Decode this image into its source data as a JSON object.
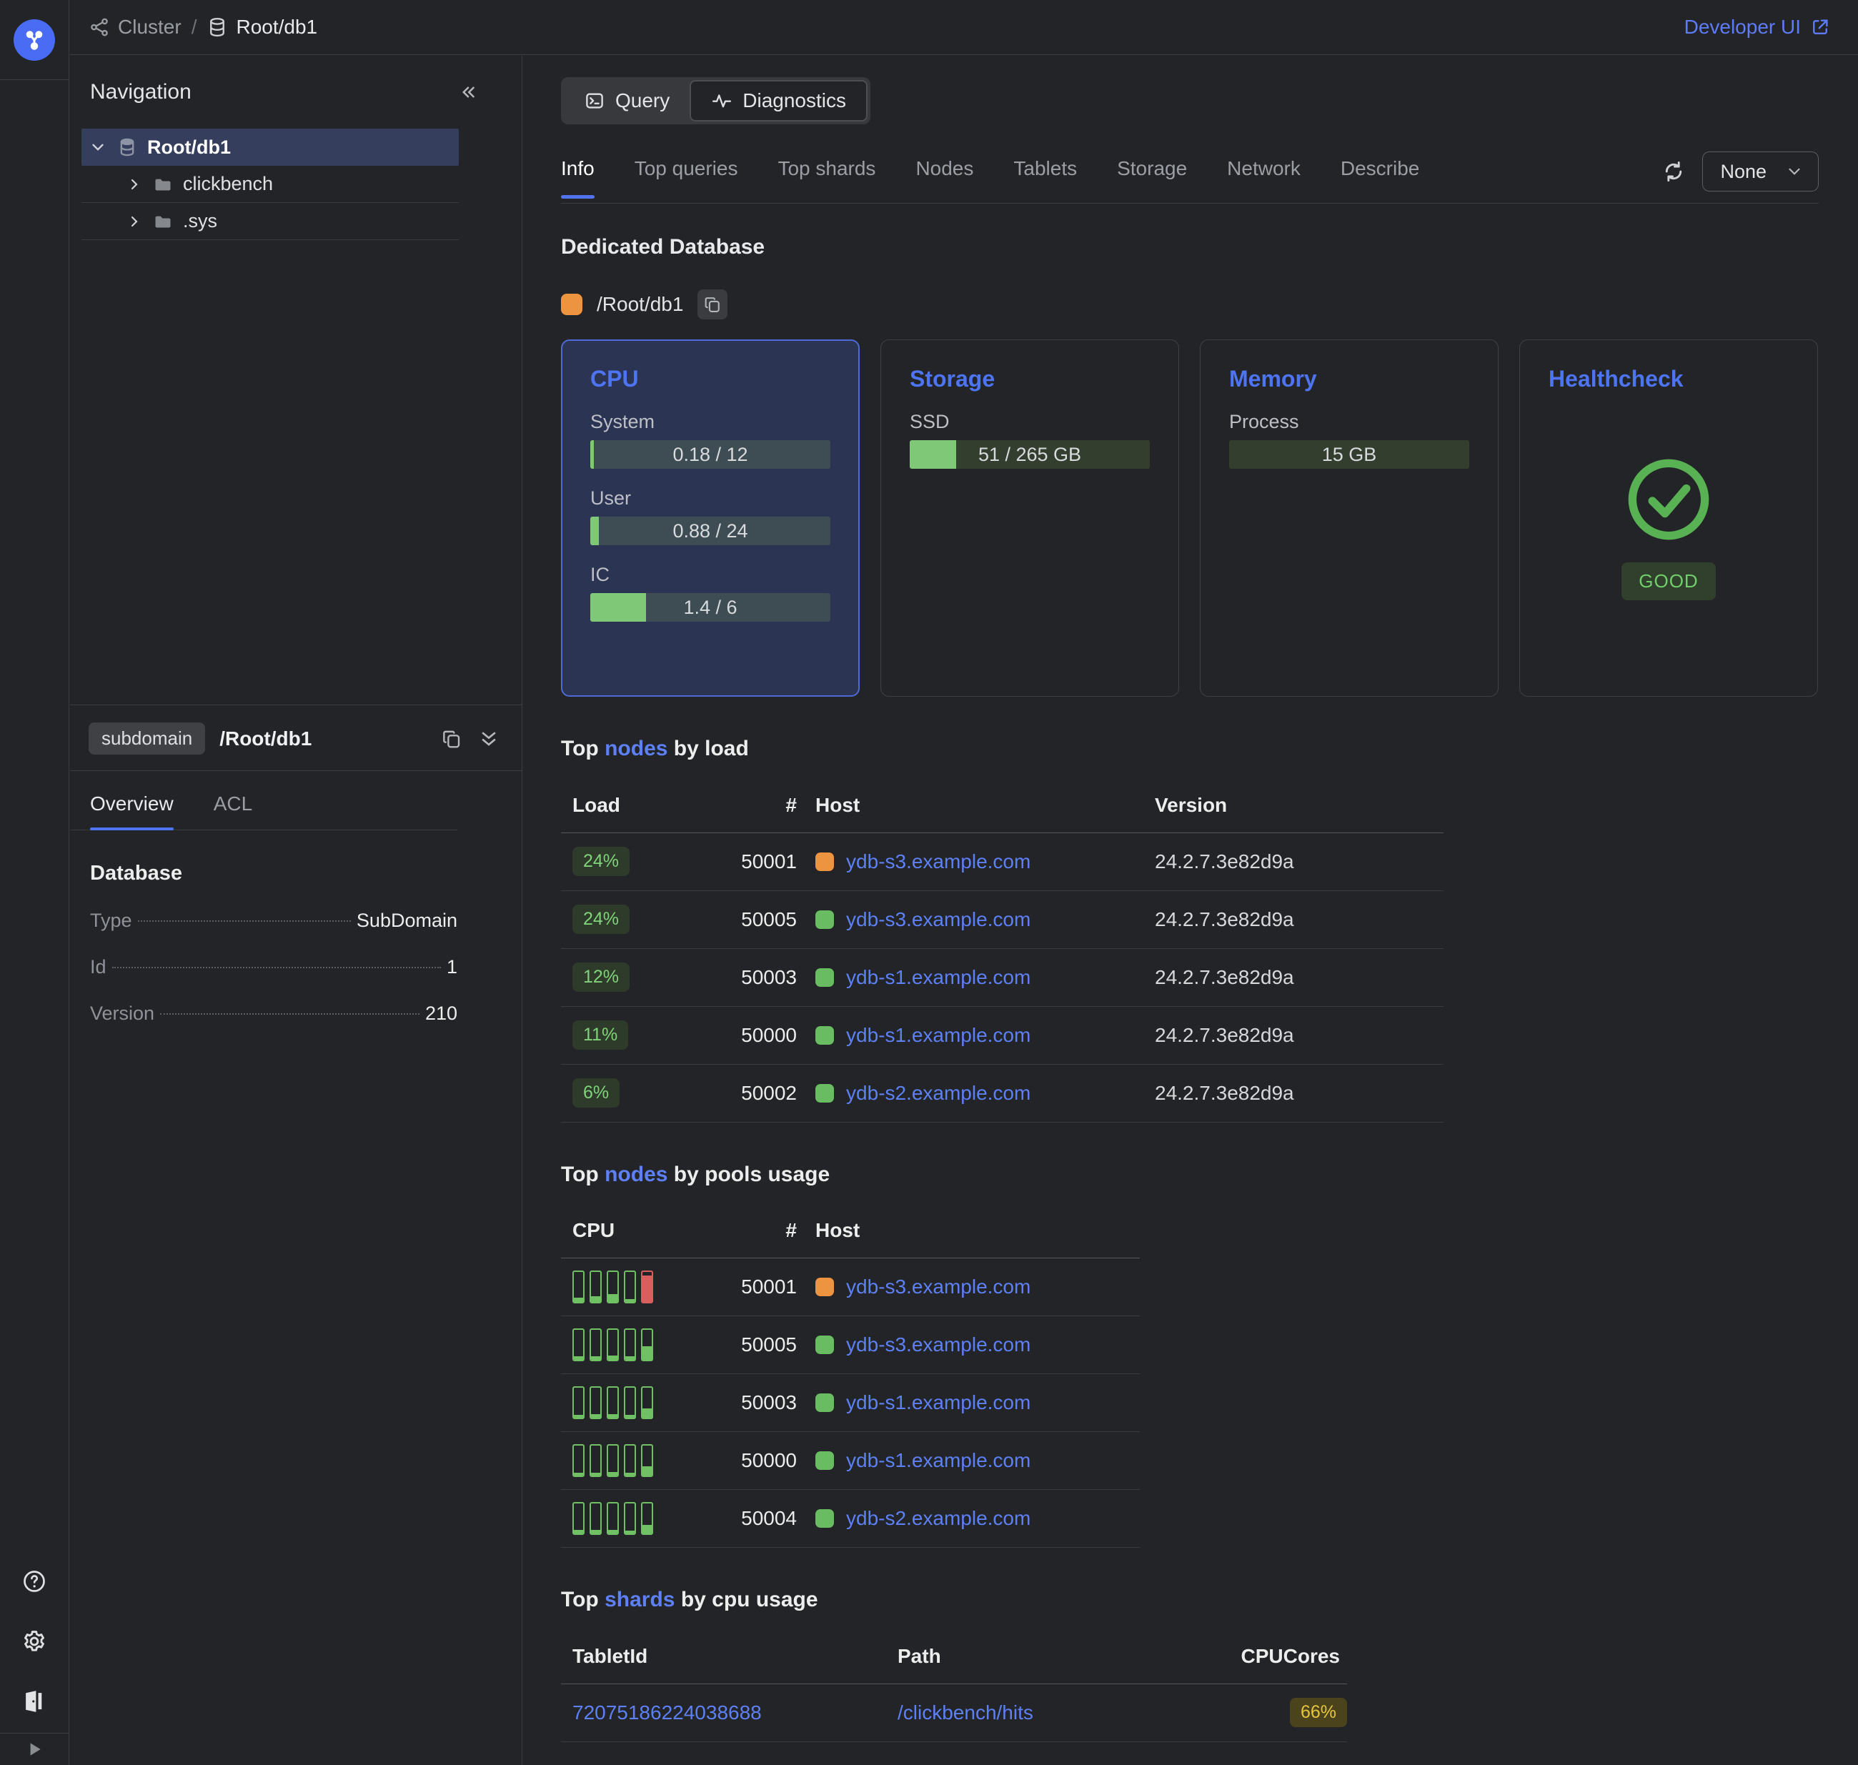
{
  "colors": {
    "accent": "#4d74f2",
    "link": "#5d80f5",
    "green_fill": "#7fc878",
    "status": {
      "orange": "#ec9440",
      "green": "#6abc62"
    },
    "pool": {
      "green": "#6fc163",
      "red": "#d95f5f"
    }
  },
  "topbar": {
    "breadcrumb_cluster": "Cluster",
    "separator": "/",
    "breadcrumb_entity": "Root/db1",
    "developer_ui": "Developer UI"
  },
  "sidebar": {
    "nav_title": "Navigation",
    "tree": {
      "root": {
        "label": "Root/db1"
      },
      "children": [
        {
          "label": "clickbench"
        },
        {
          "label": ".sys"
        }
      ]
    },
    "entity": {
      "chip": "subdomain",
      "path": "/Root/db1"
    },
    "tabs": {
      "overview": "Overview",
      "acl": "ACL"
    },
    "info_title": "Database",
    "info_rows": [
      {
        "label": "Type",
        "value": "SubDomain"
      },
      {
        "label": "Id",
        "value": "1"
      },
      {
        "label": "Version",
        "value": "210"
      }
    ]
  },
  "main": {
    "mode": {
      "query": "Query",
      "diagnostics": "Diagnostics"
    },
    "tabs": [
      "Info",
      "Top queries",
      "Top shards",
      "Nodes",
      "Tablets",
      "Storage",
      "Network",
      "Describe"
    ],
    "autorefresh": "None",
    "page_title": "Dedicated Database",
    "entity": {
      "path": "/Root/db1",
      "status": "orange"
    },
    "cards": {
      "cpu": {
        "title": "CPU",
        "metrics": [
          {
            "label": "System",
            "text": "0.18 / 12",
            "pct": 1.5
          },
          {
            "label": "User",
            "text": "0.88 / 24",
            "pct": 3.7
          },
          {
            "label": "IC",
            "text": "1.4 / 6",
            "pct": 23.3
          }
        ]
      },
      "storage": {
        "title": "Storage",
        "metrics": [
          {
            "label": "SSD",
            "text": "51 / 265 GB",
            "pct": 19.2
          }
        ]
      },
      "memory": {
        "title": "Memory",
        "metrics": [
          {
            "label": "Process",
            "text": "15 GB",
            "pct": 0
          }
        ]
      },
      "healthcheck": {
        "title": "Healthcheck",
        "status": "GOOD"
      }
    },
    "top_nodes_load": {
      "title": {
        "prefix": "Top ",
        "link": "nodes",
        "suffix": " by load"
      },
      "columns": {
        "load": "Load",
        "num": "#",
        "host": "Host",
        "version": "Version"
      },
      "rows": [
        {
          "load": "24%",
          "id": "50001",
          "status": "orange",
          "host": "ydb-s3.example.com",
          "version": "24.2.7.3e82d9a"
        },
        {
          "load": "24%",
          "id": "50005",
          "status": "green",
          "host": "ydb-s3.example.com",
          "version": "24.2.7.3e82d9a"
        },
        {
          "load": "12%",
          "id": "50003",
          "status": "green",
          "host": "ydb-s1.example.com",
          "version": "24.2.7.3e82d9a"
        },
        {
          "load": "11%",
          "id": "50000",
          "status": "green",
          "host": "ydb-s1.example.com",
          "version": "24.2.7.3e82d9a"
        },
        {
          "load": "6%",
          "id": "50002",
          "status": "green",
          "host": "ydb-s2.example.com",
          "version": "24.2.7.3e82d9a"
        }
      ]
    },
    "top_nodes_pools": {
      "title": {
        "prefix": "Top ",
        "link": "nodes",
        "suffix": " by pools usage"
      },
      "columns": {
        "cpu": "CPU",
        "num": "#",
        "host": "Host"
      },
      "rows": [
        {
          "id": "50001",
          "status": "orange",
          "host": "ydb-s3.example.com",
          "pools": [
            {
              "pct": 14,
              "color": "green"
            },
            {
              "pct": 20,
              "color": "green"
            },
            {
              "pct": 26,
              "color": "green"
            },
            {
              "pct": 10,
              "color": "green"
            },
            {
              "pct": 88,
              "color": "red"
            }
          ]
        },
        {
          "id": "50005",
          "status": "green",
          "host": "ydb-s3.example.com",
          "pools": [
            {
              "pct": 12,
              "color": "green"
            },
            {
              "pct": 12,
              "color": "green"
            },
            {
              "pct": 14,
              "color": "green"
            },
            {
              "pct": 12,
              "color": "green"
            },
            {
              "pct": 45,
              "color": "green"
            }
          ]
        },
        {
          "id": "50003",
          "status": "green",
          "host": "ydb-s1.example.com",
          "pools": [
            {
              "pct": 10,
              "color": "green"
            },
            {
              "pct": 12,
              "color": "green"
            },
            {
              "pct": 12,
              "color": "green"
            },
            {
              "pct": 10,
              "color": "green"
            },
            {
              "pct": 30,
              "color": "green"
            }
          ]
        },
        {
          "id": "50000",
          "status": "green",
          "host": "ydb-s1.example.com",
          "pools": [
            {
              "pct": 10,
              "color": "green"
            },
            {
              "pct": 10,
              "color": "green"
            },
            {
              "pct": 12,
              "color": "green"
            },
            {
              "pct": 10,
              "color": "green"
            },
            {
              "pct": 30,
              "color": "green"
            }
          ]
        },
        {
          "id": "50004",
          "status": "green",
          "host": "ydb-s2.example.com",
          "pools": [
            {
              "pct": 12,
              "color": "green"
            },
            {
              "pct": 12,
              "color": "green"
            },
            {
              "pct": 12,
              "color": "green"
            },
            {
              "pct": 10,
              "color": "green"
            },
            {
              "pct": 28,
              "color": "green"
            }
          ]
        }
      ]
    },
    "top_shards": {
      "title": {
        "prefix": "Top ",
        "link": "shards",
        "suffix": " by cpu usage"
      },
      "columns": {
        "tablet": "TabletId",
        "path": "Path",
        "cpu": "CPUCores"
      },
      "rows": [
        {
          "tablet_id": "72075186224038688",
          "path": "/clickbench/hits",
          "cpu": "66%"
        }
      ]
    }
  }
}
